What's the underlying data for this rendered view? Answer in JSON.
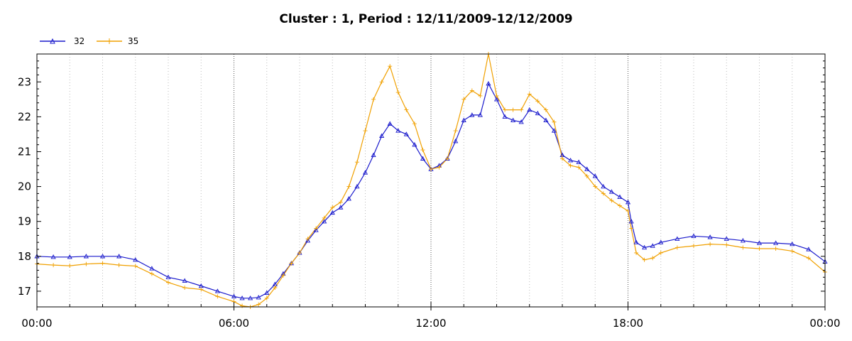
{
  "chart_data": {
    "type": "line",
    "title": "Cluster : 1, Period : 12/11/2009-12/12/2009",
    "xlabel": "",
    "ylabel": "",
    "x_tick_labels": [
      "00:00",
      "06:00",
      "12:00",
      "18:00",
      "00:00"
    ],
    "x_range_hours": [
      0,
      24
    ],
    "y_ticks": [
      17,
      18,
      19,
      20,
      21,
      22,
      23
    ],
    "ylim": [
      16.55,
      23.8
    ],
    "grid": "vertical dotted lines every hour",
    "legend_placement": "top-left",
    "colors": {
      "s32": "#1a1acc",
      "s35": "#f0a000"
    },
    "series": [
      {
        "name": "32",
        "marker": "triangle",
        "x_hours": [
          0,
          0.5,
          1,
          1.5,
          2,
          2.5,
          3,
          3.5,
          4,
          4.5,
          5,
          5.5,
          6,
          6.25,
          6.5,
          6.75,
          7,
          7.25,
          7.5,
          7.75,
          8,
          8.25,
          8.5,
          8.75,
          9,
          9.25,
          9.5,
          9.75,
          10,
          10.25,
          10.5,
          10.75,
          11,
          11.25,
          11.5,
          11.75,
          12,
          12.25,
          12.5,
          12.75,
          13,
          13.25,
          13.5,
          13.75,
          14,
          14.25,
          14.5,
          14.75,
          15,
          15.25,
          15.5,
          15.75,
          16,
          16.25,
          16.5,
          16.75,
          17,
          17.25,
          17.5,
          17.75,
          18,
          18.1,
          18.25,
          18.5,
          18.75,
          19,
          19.5,
          20,
          20.5,
          21,
          21.5,
          22,
          22.5,
          23,
          23.5,
          24
        ],
        "values": [
          18.0,
          17.98,
          17.98,
          18.0,
          18.0,
          18.0,
          17.9,
          17.65,
          17.4,
          17.3,
          17.15,
          17.0,
          16.85,
          16.8,
          16.8,
          16.82,
          16.95,
          17.2,
          17.5,
          17.8,
          18.1,
          18.45,
          18.75,
          19.0,
          19.25,
          19.4,
          19.65,
          20.0,
          20.4,
          20.9,
          21.45,
          21.8,
          21.6,
          21.5,
          21.2,
          20.8,
          20.5,
          20.6,
          20.8,
          21.3,
          21.9,
          22.05,
          22.05,
          22.95,
          22.5,
          22.0,
          21.9,
          21.85,
          22.2,
          22.1,
          21.9,
          21.6,
          20.9,
          20.75,
          20.7,
          20.5,
          20.3,
          20.0,
          19.85,
          19.7,
          19.55,
          19.0,
          18.4,
          18.25,
          18.3,
          18.4,
          18.5,
          18.58,
          18.55,
          18.5,
          18.45,
          18.38,
          18.38,
          18.35,
          18.2,
          17.85
        ]
      },
      {
        "name": "35",
        "marker": "plus",
        "x_hours": [
          0,
          0.5,
          1,
          1.5,
          2,
          2.5,
          3,
          3.5,
          4,
          4.5,
          5,
          5.5,
          6,
          6.25,
          6.5,
          6.75,
          7,
          7.25,
          7.5,
          7.75,
          8,
          8.25,
          8.5,
          8.75,
          9,
          9.25,
          9.5,
          9.75,
          10,
          10.25,
          10.5,
          10.75,
          11,
          11.25,
          11.5,
          11.75,
          12,
          12.25,
          12.5,
          12.75,
          13,
          13.25,
          13.5,
          13.75,
          14,
          14.25,
          14.5,
          14.75,
          15,
          15.25,
          15.5,
          15.75,
          16,
          16.25,
          16.5,
          16.75,
          17,
          17.25,
          17.5,
          17.75,
          18,
          18.1,
          18.25,
          18.5,
          18.75,
          19,
          19.5,
          20,
          20.5,
          21,
          21.5,
          22,
          22.5,
          23,
          23.5,
          24
        ],
        "values": [
          17.78,
          17.75,
          17.73,
          17.78,
          17.8,
          17.75,
          17.72,
          17.5,
          17.25,
          17.1,
          17.05,
          16.85,
          16.7,
          16.58,
          16.55,
          16.62,
          16.8,
          17.1,
          17.45,
          17.8,
          18.1,
          18.5,
          18.8,
          19.1,
          19.4,
          19.55,
          20.0,
          20.7,
          21.6,
          22.5,
          23.0,
          23.45,
          22.7,
          22.2,
          21.8,
          21.05,
          20.5,
          20.55,
          20.8,
          21.6,
          22.5,
          22.75,
          22.6,
          23.8,
          22.6,
          22.2,
          22.2,
          22.2,
          22.65,
          22.45,
          22.2,
          21.85,
          20.8,
          20.6,
          20.55,
          20.3,
          20.0,
          19.8,
          19.6,
          19.45,
          19.3,
          18.8,
          18.1,
          17.9,
          17.95,
          18.1,
          18.25,
          18.3,
          18.35,
          18.33,
          18.25,
          18.22,
          18.22,
          18.15,
          17.95,
          17.55
        ]
      }
    ]
  }
}
